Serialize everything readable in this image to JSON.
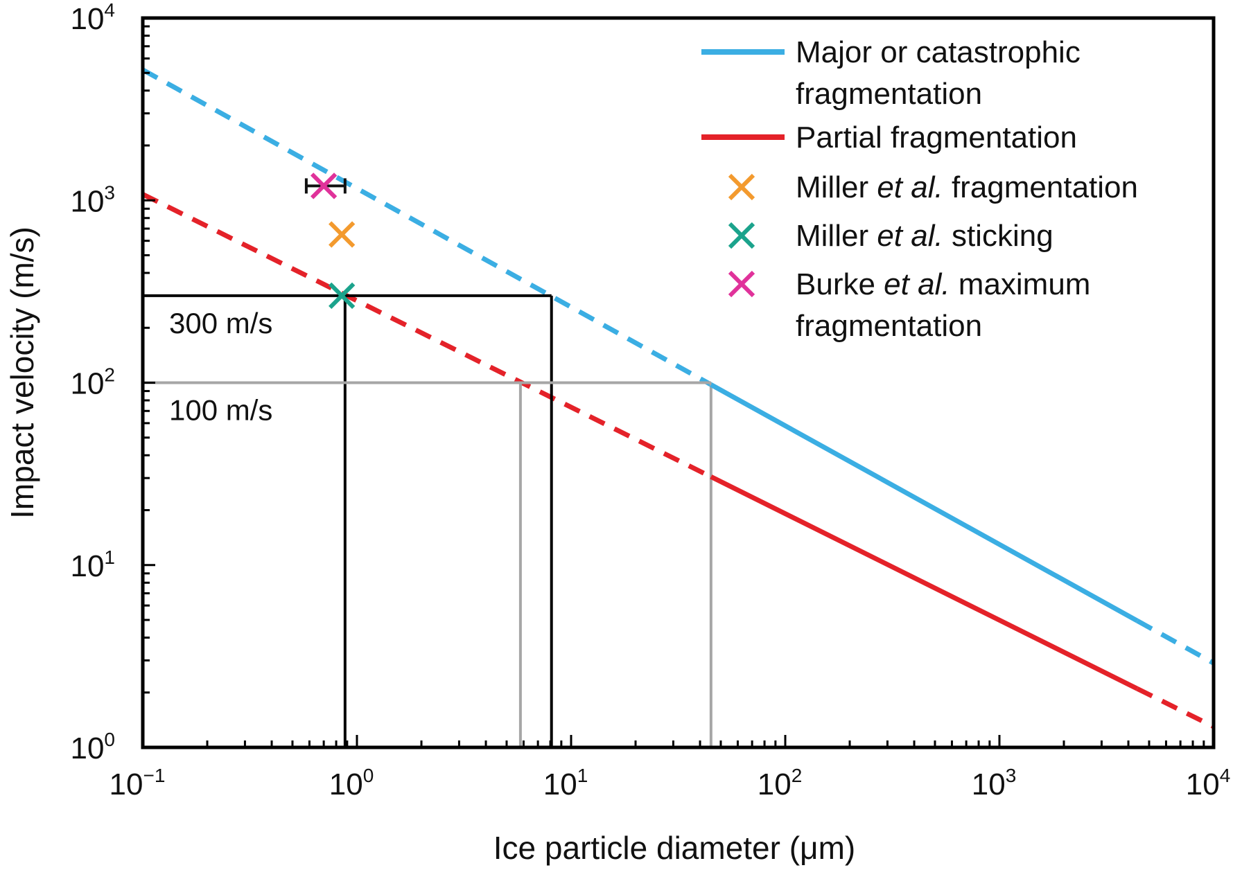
{
  "chart_data": {
    "type": "line",
    "xlabel": "Ice particle diameter (μm)",
    "ylabel": "Impact velocity (m/s)",
    "x_scale": "log",
    "y_scale": "log",
    "xlim": [
      0.1,
      10000
    ],
    "ylim": [
      1,
      10000
    ],
    "x_ticks": [
      {
        "base": "10",
        "exp": "−1",
        "value": 0.1
      },
      {
        "base": "10",
        "exp": "0",
        "value": 1
      },
      {
        "base": "10",
        "exp": "1",
        "value": 10
      },
      {
        "base": "10",
        "exp": "2",
        "value": 100
      },
      {
        "base": "10",
        "exp": "3",
        "value": 1000
      },
      {
        "base": "10",
        "exp": "4",
        "value": 10000
      }
    ],
    "y_ticks": [
      {
        "base": "10",
        "exp": "0",
        "value": 1
      },
      {
        "base": "10",
        "exp": "1",
        "value": 10
      },
      {
        "base": "10",
        "exp": "2",
        "value": 100
      },
      {
        "base": "10",
        "exp": "3",
        "value": 1000
      },
      {
        "base": "10",
        "exp": "4",
        "value": 10000
      }
    ],
    "grid": false,
    "legend_position": "top-right",
    "series": [
      {
        "name": "Major or catastrophic fragmentation",
        "label_lines": [
          "Major or catastrophic",
          "fragmentation"
        ],
        "color": "#3BAEE3",
        "kind": "line",
        "x": [
          0.1,
          10000
        ],
        "y": [
          5200,
          2.9
        ],
        "solid_range": [
          45,
          4400
        ]
      },
      {
        "name": "Partial fragmentation",
        "label_lines": [
          "Partial fragmentation"
        ],
        "color": "#E42229",
        "kind": "line",
        "x": [
          0.1,
          10000
        ],
        "y": [
          1080,
          1.3
        ],
        "solid_range": [
          45,
          4400
        ]
      },
      {
        "name": "Miller et al. fragmentation",
        "label_parts": [
          {
            "t": "Miller "
          },
          {
            "t": "et al.",
            "i": true
          },
          {
            "t": " fragmentation"
          }
        ],
        "color": "#F39A2E",
        "kind": "marker",
        "points": [
          {
            "x": 0.85,
            "y": 650
          }
        ]
      },
      {
        "name": "Miller et al. sticking",
        "label_parts": [
          {
            "t": "Miller "
          },
          {
            "t": "et al.",
            "i": true
          },
          {
            "t": " sticking"
          }
        ],
        "color": "#1BA38C",
        "kind": "marker",
        "points": [
          {
            "x": 0.85,
            "y": 300
          }
        ]
      },
      {
        "name": "Burke et al. maximum fragmentation",
        "label_parts": [
          {
            "t": "Burke "
          },
          {
            "t": "et al.",
            "i": true
          },
          {
            "t": " maximum"
          }
        ],
        "label_line2": "fragmentation",
        "color": "#E0329A",
        "kind": "marker",
        "points": [
          {
            "x": 0.7,
            "y": 1200,
            "xerr": [
              0.58,
              0.88
            ]
          }
        ]
      }
    ],
    "annotations": [
      {
        "label": "300 m/s",
        "y": 300,
        "color": "#000000",
        "x_cross": [
          0.88,
          8.1
        ]
      },
      {
        "label": "100 m/s",
        "y": 100,
        "color": "#A6A6A6",
        "x_cross": [
          5.8,
          45
        ]
      }
    ]
  }
}
